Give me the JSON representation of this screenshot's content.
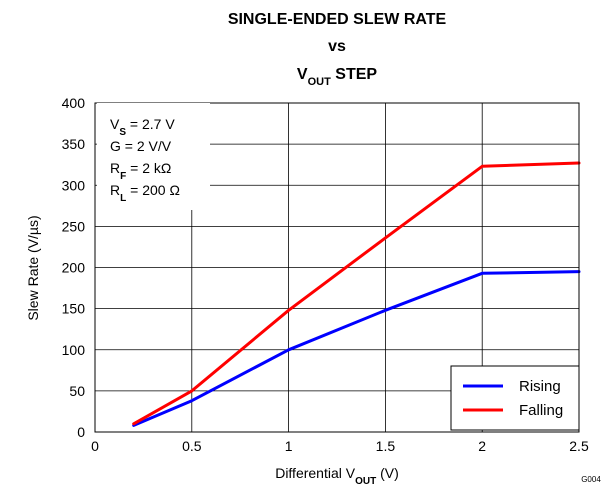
{
  "chart_data": {
    "type": "line",
    "title": {
      "line1": "SINGLE-ENDED SLEW RATE",
      "line2": "vs",
      "line3_main": "V",
      "line3_sub": "OUT",
      "line3_rest": " STEP"
    },
    "xlabel": {
      "main": "Differential V",
      "sub": "OUT",
      "rest": " (V)"
    },
    "ylabel": "Slew Rate (V/µs)",
    "xlim": [
      0,
      2.5
    ],
    "ylim": [
      0,
      400
    ],
    "x_ticks": [
      "0",
      "0.5",
      "1",
      "1.5",
      "2",
      "2.5"
    ],
    "y_ticks": [
      "0",
      "50",
      "100",
      "150",
      "200",
      "250",
      "300",
      "350",
      "400"
    ],
    "grid": true,
    "legend_position": "bottom-right",
    "series": [
      {
        "name": "Rising",
        "color": "#0000ff",
        "points": [
          [
            0.2,
            8
          ],
          [
            0.5,
            38
          ],
          [
            1.0,
            100
          ],
          [
            1.5,
            148
          ],
          [
            2.0,
            193
          ],
          [
            2.5,
            195
          ]
        ]
      },
      {
        "name": "Falling",
        "color": "#ff0000",
        "points": [
          [
            0.2,
            10
          ],
          [
            0.5,
            50
          ],
          [
            1.0,
            148
          ],
          [
            1.5,
            236
          ],
          [
            2.0,
            323
          ],
          [
            2.5,
            327
          ]
        ]
      }
    ],
    "conditions": [
      {
        "main": "V",
        "sub": "S",
        "rest": " = 2.7 V"
      },
      {
        "main": "G = 2 V/V",
        "sub": "",
        "rest": ""
      },
      {
        "main": "R",
        "sub": "F",
        "rest": " = 2 kΩ"
      },
      {
        "main": "R",
        "sub": "L",
        "rest": " = 200 Ω"
      }
    ],
    "figure_code": "G004"
  }
}
